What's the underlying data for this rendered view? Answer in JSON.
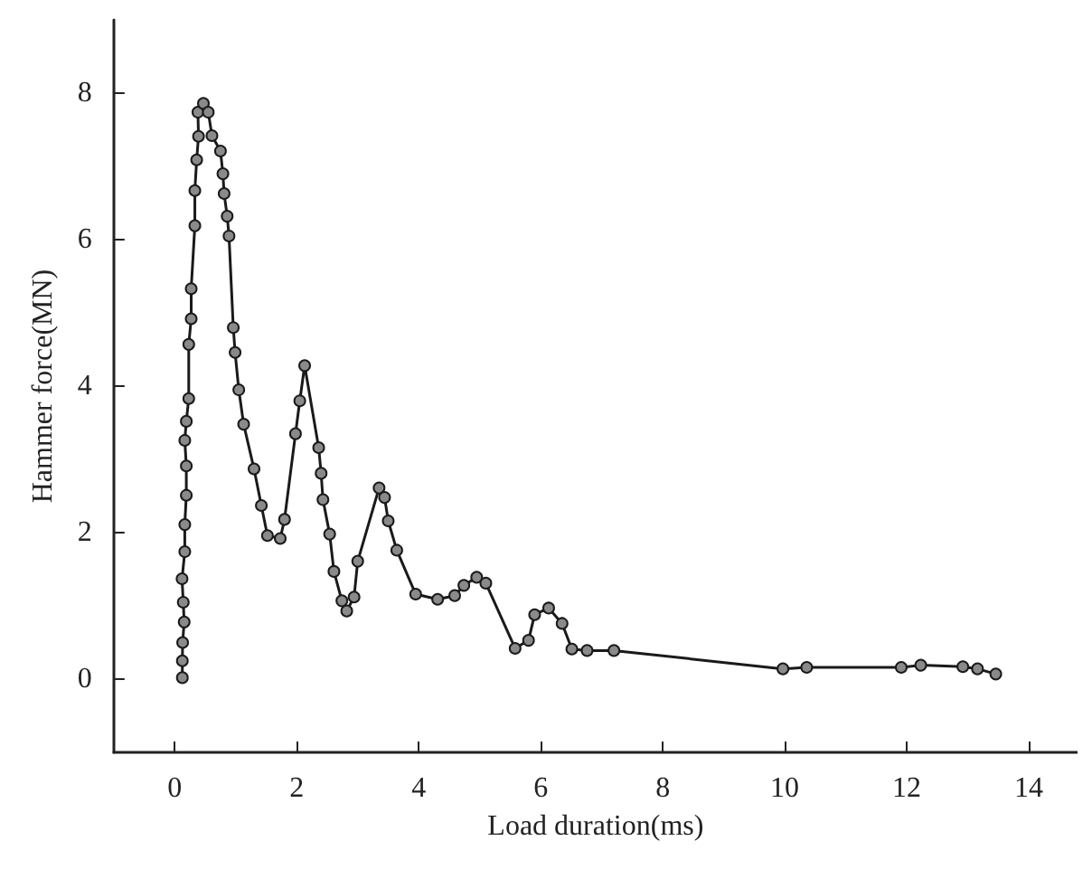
{
  "chart_data": {
    "type": "line",
    "xlabel": "Load duration(ms)",
    "ylabel": "Hammer force(MN)",
    "xlim": [
      -1,
      14.8
    ],
    "xticks": [
      0,
      2,
      4,
      6,
      8,
      10,
      12,
      14
    ],
    "ylim": [
      -1,
      9
    ],
    "yticks": [
      0,
      2,
      4,
      6,
      8
    ],
    "grid": false,
    "marker": "circle",
    "line_style": "solid",
    "series": [
      {
        "color": "#1a1a1a",
        "x": [
          0.125,
          0.125,
          0.13,
          0.155,
          0.14,
          0.12,
          0.165,
          0.165,
          0.19,
          0.19,
          0.165,
          0.19,
          0.23,
          0.23,
          0.27,
          0.27,
          0.33,
          0.33,
          0.36,
          0.39,
          0.38,
          0.47,
          0.55,
          0.61,
          0.75,
          0.79,
          0.81,
          0.86,
          0.89,
          0.96,
          0.99,
          1.05,
          1.13,
          1.3,
          1.42,
          1.52,
          1.73,
          1.8,
          1.98,
          2.05,
          2.13,
          2.36,
          2.4,
          2.43,
          2.54,
          2.61,
          2.74,
          2.82,
          2.94,
          3.0,
          3.35,
          3.44,
          3.5,
          3.64,
          3.95,
          4.31,
          4.59,
          4.74,
          4.95,
          5.1,
          5.58,
          5.8,
          5.9,
          6.13,
          6.35,
          6.51,
          6.76,
          7.2,
          9.97,
          10.36,
          11.91,
          12.23,
          12.92,
          13.16,
          13.46
        ],
        "values": [
          0.02,
          0.25,
          0.5,
          0.78,
          1.05,
          1.37,
          1.74,
          2.11,
          2.51,
          2.91,
          3.26,
          3.52,
          3.83,
          4.57,
          4.92,
          5.33,
          6.19,
          6.67,
          7.09,
          7.41,
          7.74,
          7.86,
          7.74,
          7.42,
          7.21,
          6.9,
          6.63,
          6.32,
          6.05,
          4.8,
          4.46,
          3.95,
          3.48,
          2.87,
          2.37,
          1.96,
          1.92,
          2.18,
          3.35,
          3.8,
          4.28,
          3.16,
          2.81,
          2.45,
          1.98,
          1.47,
          1.07,
          0.93,
          1.12,
          1.61,
          2.61,
          2.48,
          2.16,
          1.76,
          1.16,
          1.09,
          1.14,
          1.28,
          1.39,
          1.31,
          0.42,
          0.53,
          0.88,
          0.97,
          0.76,
          0.41,
          0.39,
          0.39,
          0.14,
          0.16,
          0.16,
          0.19,
          0.17,
          0.14,
          0.07
        ]
      }
    ]
  }
}
